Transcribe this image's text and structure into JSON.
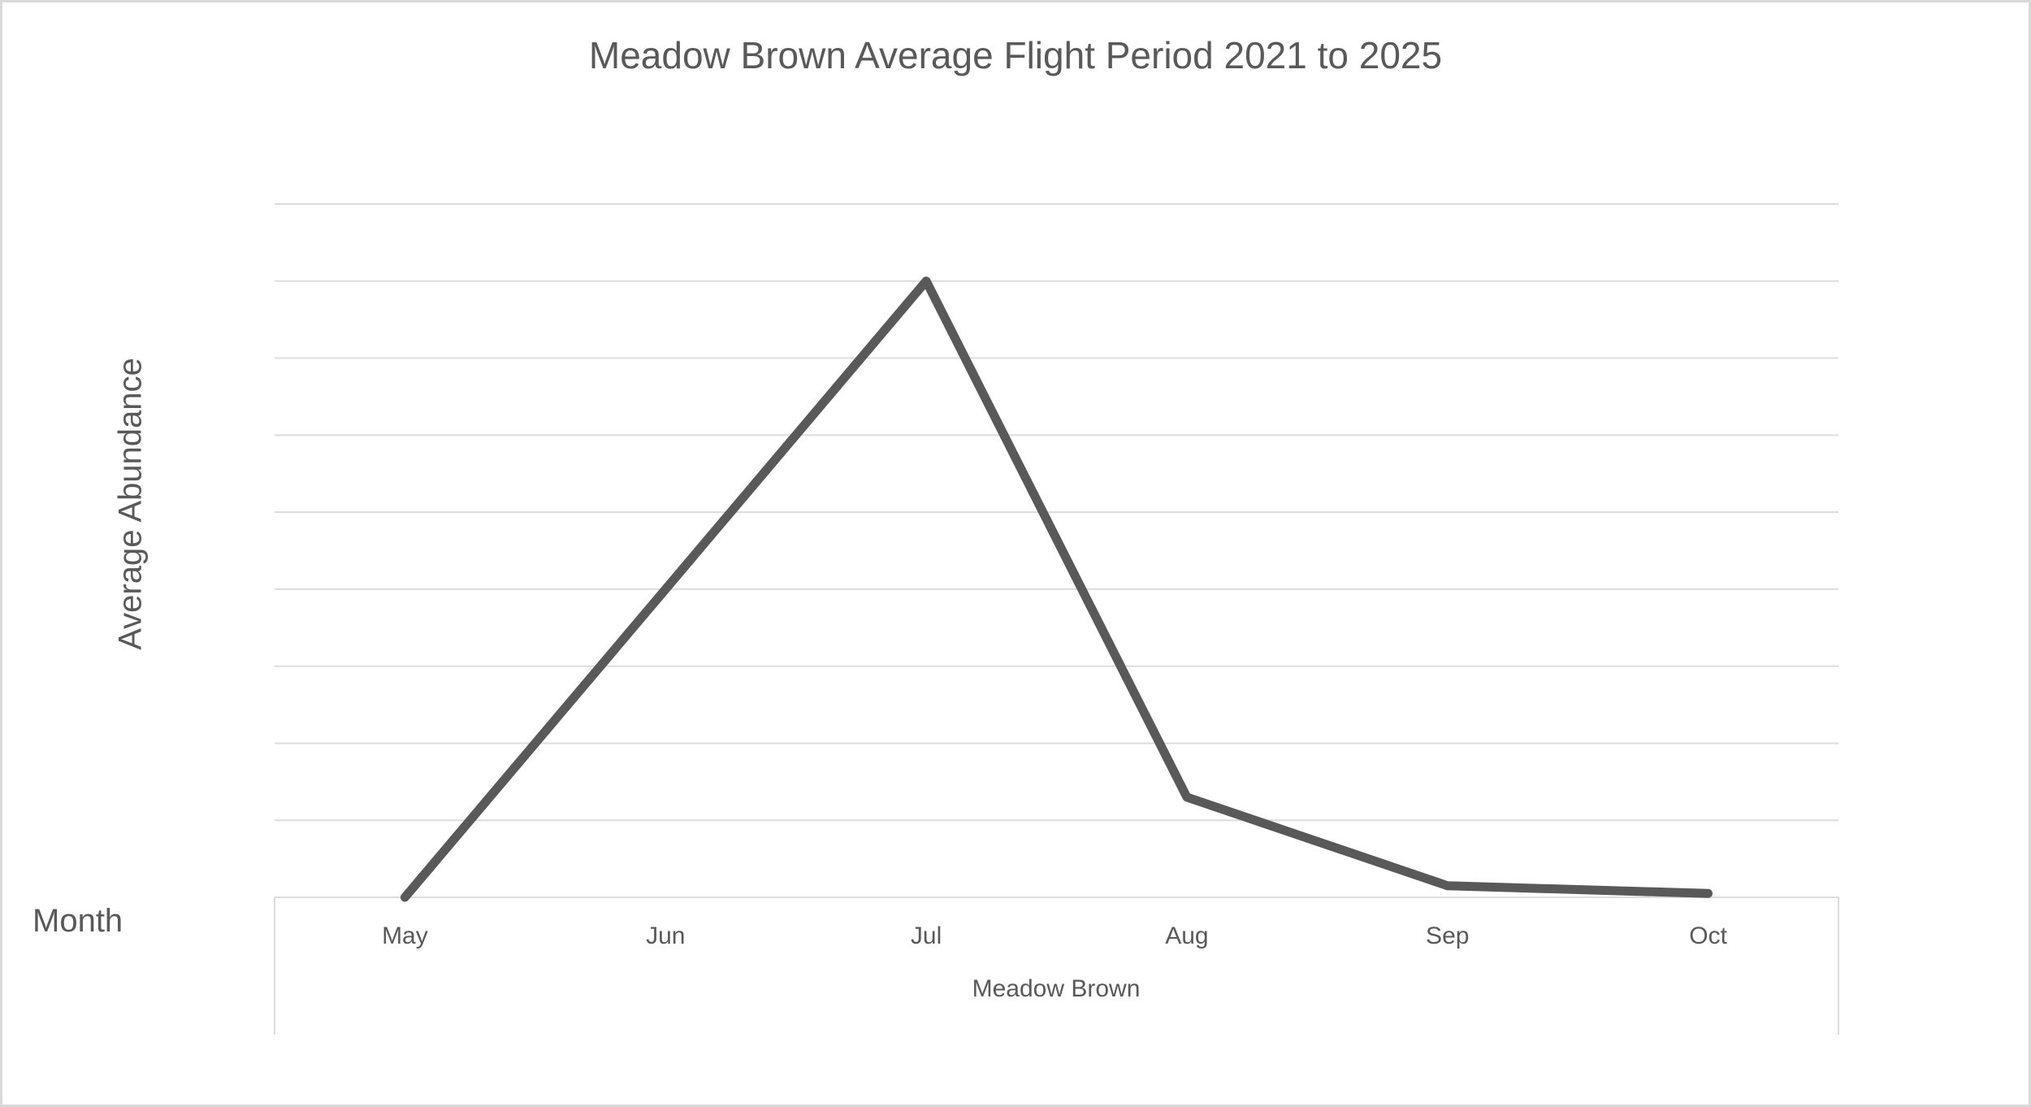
{
  "chart": {
    "title": "Meadow Brown Average Flight Period 2021 to 2025",
    "y_axis_title": "Average Abundance",
    "x_axis_title": "Month",
    "group_label": "Meadow Brown"
  },
  "chart_data": {
    "type": "line",
    "title": "Meadow Brown Average Flight Period 2021 to 2025",
    "xlabel": "Month",
    "ylabel": "Average Abundance",
    "series": [
      {
        "name": "Meadow Brown",
        "values": [
          0,
          4,
          8,
          1.3,
          0.15,
          0.05
        ]
      }
    ],
    "categories": [
      "May",
      "Jun",
      "Jul",
      "Aug",
      "Sep",
      "Oct"
    ],
    "ylim": [
      0,
      9
    ],
    "gridline_step": 1,
    "y_tick_labels_visible": false,
    "grid": true,
    "legend": "none",
    "colors": {
      "line": "#595959",
      "gridline": "#dcdcdc",
      "axis_line": "#dcdcdc",
      "text": "#595959",
      "chart_border": "#d9d9d9",
      "background": "#ffffff"
    }
  }
}
